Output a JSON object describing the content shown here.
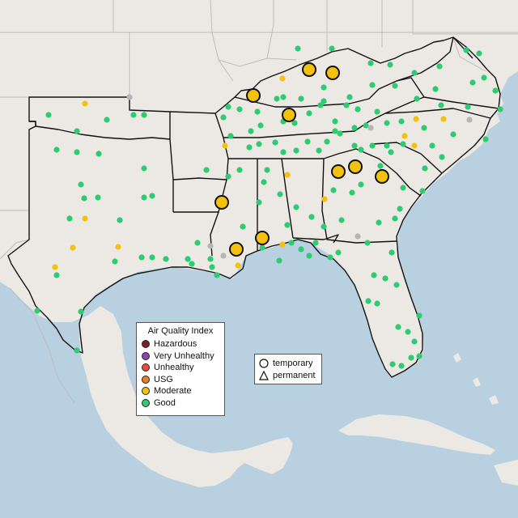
{
  "colors": {
    "ocean": "#b8d0e0",
    "land": "#ece9e5",
    "land_south": "#e6e3de",
    "border_light": "#bdbdbd",
    "border_dark": "#111111",
    "good": "#2ecc71",
    "moderate": "#f4c20d",
    "gray": "#b5b5b5"
  },
  "legend": {
    "title": "Air Quality Index",
    "items": [
      {
        "label": "Hazardous",
        "color": "#7e1f23"
      },
      {
        "label": "Very Unhealthy",
        "color": "#8e44ad"
      },
      {
        "label": "Unhealthy",
        "color": "#e74c3c"
      },
      {
        "label": "USG",
        "color": "#e67e22"
      },
      {
        "label": "Moderate",
        "color": "#f1c40f"
      },
      {
        "label": "Good",
        "color": "#2ecc71"
      }
    ]
  },
  "shape_legend": {
    "items": [
      {
        "label": "temporary",
        "icon": "circle-icon"
      },
      {
        "label": "permanent",
        "icon": "triangle-icon"
      }
    ]
  },
  "monitors": {
    "large_moderate": [
      [
        313,
        118
      ],
      [
        382,
        86
      ],
      [
        411,
        90
      ],
      [
        357,
        142
      ],
      [
        418,
        212
      ],
      [
        439,
        206
      ],
      [
        472,
        218
      ],
      [
        274,
        250
      ],
      [
        324,
        294
      ],
      [
        292,
        308
      ]
    ],
    "small_moderate": [
      [
        105,
        128
      ],
      [
        349,
        97
      ],
      [
        278,
        180
      ],
      [
        355,
        216
      ],
      [
        105,
        270
      ],
      [
        90,
        306
      ],
      [
        146,
        305
      ],
      [
        68,
        330
      ],
      [
        349,
        302
      ],
      [
        294,
        328
      ],
      [
        514,
        147
      ],
      [
        548,
        147
      ],
      [
        500,
        168
      ],
      [
        512,
        180
      ],
      [
        401,
        246
      ]
    ],
    "gray": [
      [
        160,
        120
      ],
      [
        458,
        158
      ],
      [
        580,
        148
      ],
      [
        442,
        292
      ],
      [
        260,
        304
      ],
      [
        276,
        316
      ]
    ],
    "good": [
      [
        60,
        142
      ],
      [
        95,
        162
      ],
      [
        132,
        148
      ],
      [
        165,
        142
      ],
      [
        178,
        142
      ],
      [
        95,
        188
      ],
      [
        70,
        185
      ],
      [
        122,
        190
      ],
      [
        178,
        208
      ],
      [
        100,
        228
      ],
      [
        104,
        245
      ],
      [
        121,
        244
      ],
      [
        178,
        244
      ],
      [
        188,
        242
      ],
      [
        148,
        272
      ],
      [
        142,
        323
      ],
      [
        175,
        318
      ],
      [
        100,
        385
      ],
      [
        46,
        384
      ],
      [
        95,
        433
      ],
      [
        86,
        270
      ],
      [
        70,
        340
      ],
      [
        188,
        318
      ],
      [
        205,
        320
      ],
      [
        232,
        320
      ],
      [
        244,
        300
      ],
      [
        260,
        320
      ],
      [
        237,
        326
      ],
      [
        255,
        210
      ],
      [
        276,
        145
      ],
      [
        322,
        155
      ],
      [
        342,
        122
      ],
      [
        372,
        122
      ],
      [
        400,
        125
      ],
      [
        350,
        120
      ],
      [
        368,
        60
      ],
      [
        410,
        60
      ],
      [
        458,
        78
      ],
      [
        482,
        80
      ],
      [
        432,
        120
      ],
      [
        400,
        108
      ],
      [
        460,
        105
      ],
      [
        488,
        106
      ],
      [
        512,
        90
      ],
      [
        543,
        82
      ],
      [
        576,
        62
      ],
      [
        592,
        66
      ],
      [
        598,
        96
      ],
      [
        584,
        102
      ],
      [
        612,
        112
      ],
      [
        538,
        110
      ],
      [
        515,
        122
      ],
      [
        545,
        130
      ],
      [
        578,
        132
      ],
      [
        618,
        135
      ],
      [
        560,
        166
      ],
      [
        600,
        172
      ],
      [
        534,
        180
      ],
      [
        546,
        194
      ],
      [
        525,
        208
      ],
      [
        522,
        236
      ],
      [
        498,
        232
      ],
      [
        494,
        258
      ],
      [
        488,
        270
      ],
      [
        468,
        275
      ],
      [
        454,
        300
      ],
      [
        484,
        312
      ],
      [
        462,
        340
      ],
      [
        476,
        344
      ],
      [
        490,
        352
      ],
      [
        455,
        372
      ],
      [
        466,
        375
      ],
      [
        492,
        404
      ],
      [
        518,
        390
      ],
      [
        504,
        410
      ],
      [
        512,
        422
      ],
      [
        518,
        440
      ],
      [
        508,
        442
      ],
      [
        485,
        450
      ],
      [
        496,
        452
      ],
      [
        435,
        238
      ],
      [
        422,
        272
      ],
      [
        385,
        268
      ],
      [
        366,
        256
      ],
      [
        346,
        240
      ],
      [
        326,
        225
      ],
      [
        296,
        210
      ],
      [
        282,
        218
      ],
      [
        300,
        280
      ],
      [
        262,
        330
      ],
      [
        268,
        340
      ],
      [
        390,
        300
      ],
      [
        382,
        316
      ],
      [
        408,
        318
      ],
      [
        418,
        312
      ],
      [
        360,
        300
      ],
      [
        420,
        165
      ],
      [
        438,
        158
      ],
      [
        446,
        185
      ],
      [
        446,
        228
      ],
      [
        412,
        235
      ],
      [
        438,
        180
      ],
      [
        460,
        180
      ],
      [
        478,
        180
      ],
      [
        470,
        205
      ],
      [
        483,
        188
      ],
      [
        396,
        130
      ],
      [
        382,
        140
      ],
      [
        308,
        182
      ],
      [
        285,
        168
      ],
      [
        320,
        178
      ],
      [
        340,
        176
      ],
      [
        350,
        188
      ],
      [
        366,
        186
      ],
      [
        380,
        175
      ],
      [
        394,
        186
      ],
      [
        414,
        150
      ],
      [
        414,
        162
      ],
      [
        404,
        175
      ],
      [
        428,
        130
      ],
      [
        442,
        135
      ],
      [
        466,
        138
      ],
      [
        478,
        152
      ],
      [
        496,
        150
      ],
      [
        310,
        162
      ],
      [
        296,
        135
      ],
      [
        282,
        132
      ],
      [
        318,
        138
      ],
      [
        350,
        150
      ],
      [
        364,
        152
      ],
      [
        330,
        210
      ],
      [
        320,
        250
      ],
      [
        355,
        278
      ],
      [
        400,
        280
      ],
      [
        324,
        306
      ],
      [
        345,
        322
      ],
      [
        372,
        308
      ],
      [
        498,
        178
      ],
      [
        524,
        158
      ],
      [
        452,
        155
      ]
    ]
  }
}
